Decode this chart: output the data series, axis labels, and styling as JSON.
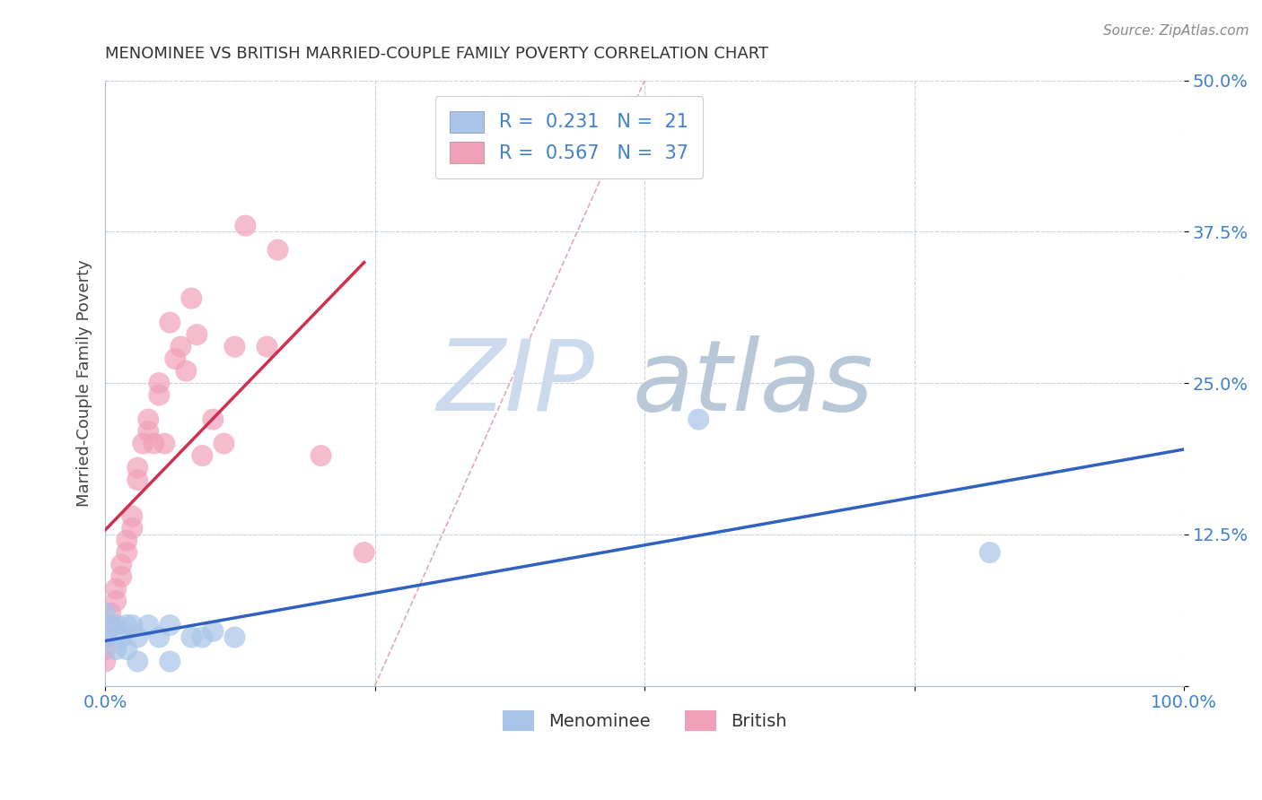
{
  "title": "MENOMINEE VS BRITISH MARRIED-COUPLE FAMILY POVERTY CORRELATION CHART",
  "source": "Source: ZipAtlas.com",
  "ylabel": "Married-Couple Family Poverty",
  "xlim": [
    0,
    1.0
  ],
  "ylim": [
    0,
    0.5
  ],
  "menominee_R": 0.231,
  "menominee_N": 21,
  "british_R": 0.567,
  "british_N": 37,
  "menominee_color": "#a8c4e8",
  "british_color": "#f0a0b8",
  "menominee_line_color": "#3060c0",
  "british_line_color": "#d03050",
  "diag_line_color": "#e090a0",
  "tick_color": "#4080d0",
  "menominee_x": [
    0.0,
    0.0,
    0.005,
    0.01,
    0.01,
    0.015,
    0.02,
    0.02,
    0.025,
    0.03,
    0.03,
    0.04,
    0.05,
    0.06,
    0.06,
    0.08,
    0.09,
    0.1,
    0.12,
    0.55,
    0.82
  ],
  "menominee_y": [
    0.06,
    0.04,
    0.05,
    0.05,
    0.03,
    0.04,
    0.05,
    0.03,
    0.05,
    0.04,
    0.02,
    0.05,
    0.04,
    0.05,
    0.02,
    0.04,
    0.04,
    0.045,
    0.04,
    0.22,
    0.11
  ],
  "british_x": [
    0.0,
    0.0,
    0.0,
    0.005,
    0.005,
    0.01,
    0.01,
    0.015,
    0.015,
    0.02,
    0.02,
    0.025,
    0.025,
    0.03,
    0.03,
    0.035,
    0.04,
    0.04,
    0.045,
    0.05,
    0.05,
    0.055,
    0.06,
    0.065,
    0.07,
    0.075,
    0.08,
    0.085,
    0.09,
    0.1,
    0.11,
    0.12,
    0.13,
    0.15,
    0.16,
    0.2,
    0.24
  ],
  "british_y": [
    0.04,
    0.03,
    0.02,
    0.06,
    0.05,
    0.08,
    0.07,
    0.1,
    0.09,
    0.12,
    0.11,
    0.14,
    0.13,
    0.18,
    0.17,
    0.2,
    0.22,
    0.21,
    0.2,
    0.25,
    0.24,
    0.2,
    0.3,
    0.27,
    0.28,
    0.26,
    0.32,
    0.29,
    0.19,
    0.22,
    0.2,
    0.28,
    0.38,
    0.28,
    0.36,
    0.19,
    0.11
  ]
}
